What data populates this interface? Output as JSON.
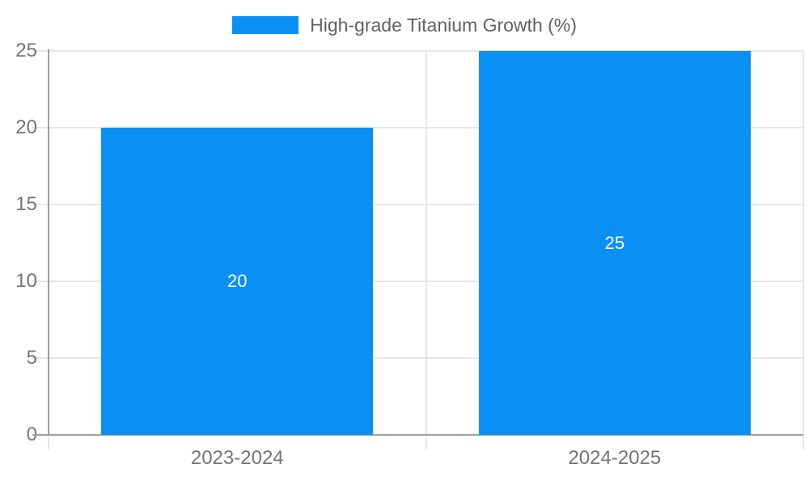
{
  "chart_data": {
    "type": "bar",
    "title": "",
    "xlabel": "",
    "ylabel": "",
    "categories": [
      "2023-2024",
      "2024-2025"
    ],
    "values": [
      20,
      25
    ],
    "value_labels": [
      "20",
      "25"
    ],
    "yticks": [
      0,
      5,
      10,
      15,
      20,
      25
    ],
    "ylim": [
      0,
      25
    ],
    "grid": true,
    "legend": {
      "label": "High-grade Titanium Growth (%)",
      "position": "top"
    },
    "series_color": "#0a90f5",
    "colors": {
      "grid": "#e6e6e6",
      "axis": "#9e9e9e",
      "tick_text": "#757575",
      "legend_text": "#616161",
      "value_label": "#ffffff",
      "background": "#ffffff"
    }
  }
}
